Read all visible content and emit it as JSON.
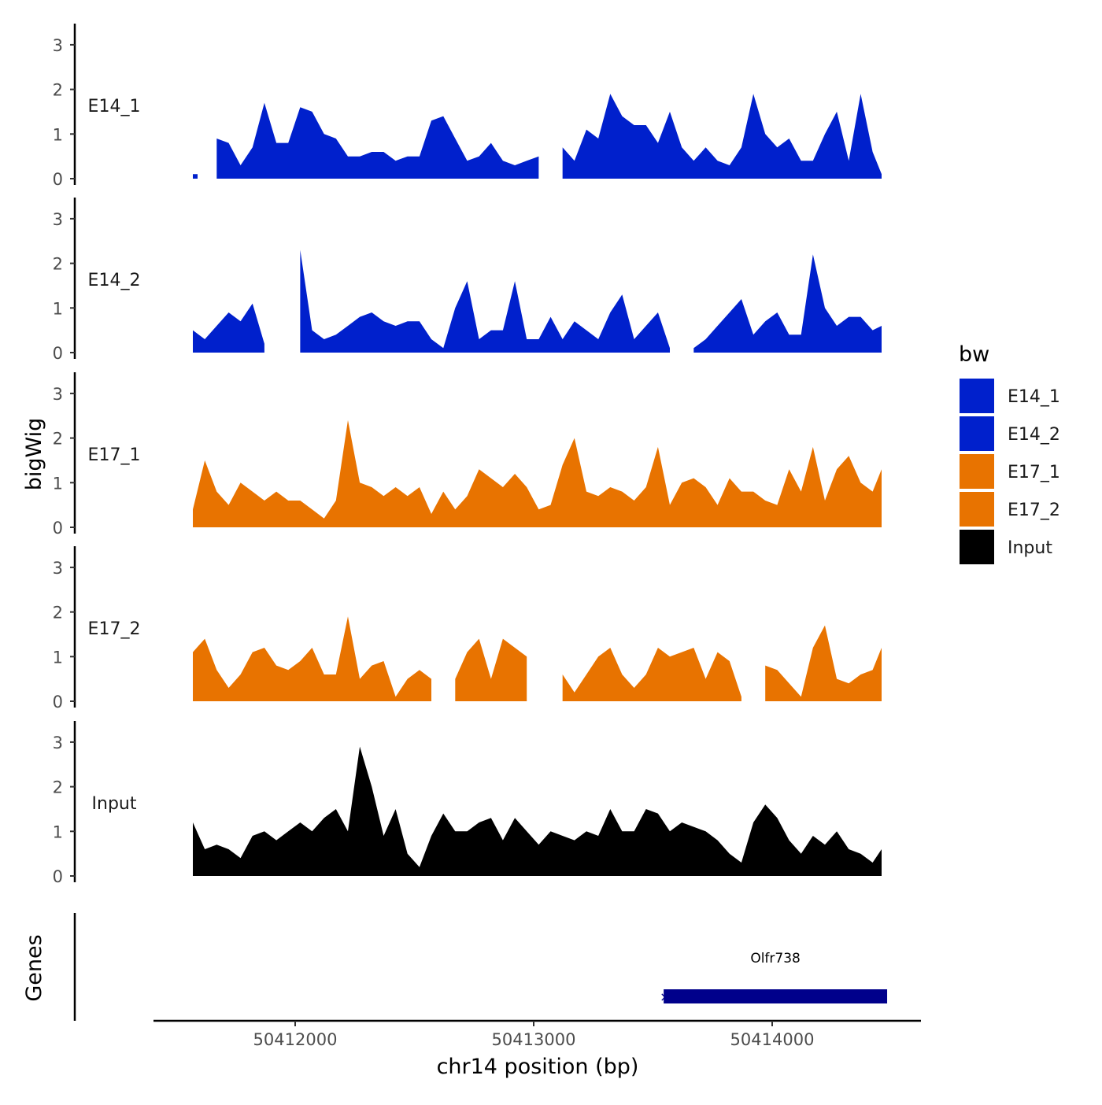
{
  "chart_data": {
    "type": "area",
    "title": "",
    "xlabel": "chr14 position (bp)",
    "ylabel": "bigWig",
    "genes_label": "Genes",
    "xlim": [
      50411400,
      50414620
    ],
    "ylim": [
      0,
      3.4
    ],
    "x_ticks": [
      50412000,
      50413000,
      50414000
    ],
    "x_tick_labels": [
      "50412000",
      "50413000",
      "50414000"
    ],
    "y_ticks": [
      0,
      1,
      2,
      3
    ],
    "y_tick_labels": [
      "0",
      "1",
      "2",
      "3"
    ],
    "x_start": 50411571,
    "x_step": 50,
    "legend": {
      "title": "bw",
      "position": "right",
      "entries": [
        {
          "label": "E14_1",
          "color": "#0020CC"
        },
        {
          "label": "E14_2",
          "color": "#0020CC"
        },
        {
          "label": "E17_1",
          "color": "#E87300"
        },
        {
          "label": "E17_2",
          "color": "#E87300"
        },
        {
          "label": "Input",
          "color": "#000000"
        }
      ]
    },
    "series": [
      {
        "name": "E14_1",
        "color": "#0020CC",
        "values": [
          0.1,
          null,
          0.9,
          0.8,
          0.3,
          0.7,
          1.7,
          0.8,
          0.8,
          1.6,
          1.5,
          1.0,
          0.9,
          0.5,
          0.5,
          0.6,
          0.6,
          0.4,
          0.5,
          0.5,
          1.3,
          1.4,
          0.9,
          0.4,
          0.5,
          0.8,
          0.4,
          0.3,
          0.4,
          0.5,
          null,
          0.7,
          0.4,
          1.1,
          0.9,
          1.9,
          1.4,
          1.2,
          1.2,
          0.8,
          1.5,
          0.7,
          0.4,
          0.7,
          0.4,
          0.3,
          0.7,
          1.9,
          1.0,
          0.7,
          0.9,
          0.4,
          0.4,
          1.0,
          1.5,
          0.4,
          1.9,
          0.6,
          0.1
        ]
      },
      {
        "name": "E14_2",
        "color": "#0020CC",
        "values": [
          0.5,
          0.3,
          0.6,
          0.9,
          0.7,
          1.1,
          0.2,
          null,
          null,
          2.3,
          0.5,
          0.3,
          0.4,
          0.6,
          0.8,
          0.9,
          0.7,
          0.6,
          0.7,
          0.7,
          0.3,
          0.1,
          1.0,
          1.6,
          0.3,
          0.5,
          0.5,
          1.6,
          0.3,
          0.3,
          0.8,
          0.3,
          0.7,
          0.5,
          0.3,
          0.9,
          1.3,
          0.3,
          0.6,
          0.9,
          0.1,
          null,
          0.1,
          0.3,
          0.6,
          0.9,
          1.2,
          0.4,
          0.7,
          0.9,
          0.4,
          0.4,
          2.2,
          1.0,
          0.6,
          0.8,
          0.8,
          0.5,
          0.6
        ]
      },
      {
        "name": "E17_1",
        "color": "#E87300",
        "values": [
          0.4,
          1.5,
          0.8,
          0.5,
          1.0,
          0.8,
          0.6,
          0.8,
          0.6,
          0.6,
          0.4,
          0.2,
          0.6,
          2.4,
          1.0,
          0.9,
          0.7,
          0.9,
          0.7,
          0.9,
          0.3,
          0.8,
          0.4,
          0.7,
          1.3,
          1.1,
          0.9,
          1.2,
          0.9,
          0.4,
          0.5,
          1.4,
          2.0,
          0.8,
          0.7,
          0.9,
          0.8,
          0.6,
          0.9,
          1.8,
          0.5,
          1.0,
          1.1,
          0.9,
          0.5,
          1.1,
          0.8,
          0.8,
          0.6,
          0.5,
          1.3,
          0.8,
          1.8,
          0.6,
          1.3,
          1.6,
          1.0,
          0.8,
          1.3
        ]
      },
      {
        "name": "E17_2",
        "color": "#E87300",
        "values": [
          1.1,
          1.4,
          0.7,
          0.3,
          0.6,
          1.1,
          1.2,
          0.8,
          0.7,
          0.9,
          1.2,
          0.6,
          0.6,
          1.9,
          0.5,
          0.8,
          0.9,
          0.1,
          0.5,
          0.7,
          0.5,
          null,
          0.5,
          1.1,
          1.4,
          0.5,
          1.4,
          1.2,
          1.0,
          null,
          null,
          0.6,
          0.2,
          0.6,
          1.0,
          1.2,
          0.6,
          0.3,
          0.6,
          1.2,
          1.0,
          1.1,
          1.2,
          0.5,
          1.1,
          0.9,
          0.1,
          null,
          0.8,
          0.7,
          0.4,
          0.1,
          1.2,
          1.7,
          0.5,
          0.4,
          0.6,
          0.7,
          1.2
        ]
      },
      {
        "name": "Input",
        "color": "#000000",
        "values": [
          1.2,
          0.6,
          0.7,
          0.6,
          0.4,
          0.9,
          1.0,
          0.8,
          1.0,
          1.2,
          1.0,
          1.3,
          1.5,
          1.0,
          2.9,
          2.0,
          0.9,
          1.5,
          0.5,
          0.2,
          0.9,
          1.4,
          1.0,
          1.0,
          1.2,
          1.3,
          0.8,
          1.3,
          1.0,
          0.7,
          1.0,
          0.9,
          0.8,
          1.0,
          0.9,
          1.5,
          1.0,
          1.0,
          1.5,
          1.4,
          1.0,
          1.2,
          1.1,
          1.0,
          0.8,
          0.5,
          0.3,
          1.2,
          1.6,
          1.3,
          0.8,
          0.5,
          0.9,
          0.7,
          1.0,
          0.6,
          0.5,
          0.3,
          0.6
        ]
      }
    ],
    "genes": [
      {
        "name": "Olfr738",
        "start": 50413545,
        "end": 50414482,
        "color": "#00008B"
      }
    ]
  }
}
